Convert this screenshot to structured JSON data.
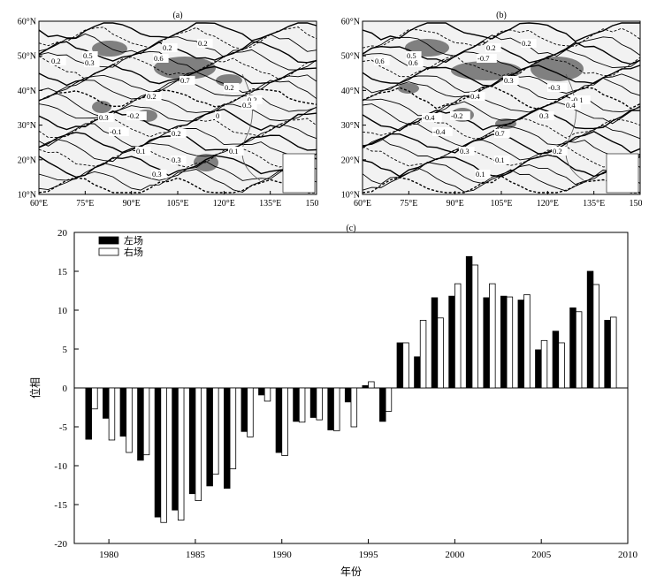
{
  "maps": [
    {
      "id": "a",
      "title": "(a)",
      "lat_labels": [
        "60°N",
        "50°N",
        "40°N",
        "30°N",
        "20°N",
        "10°N"
      ],
      "lon_labels": [
        "60°E",
        "75°E",
        "90°E",
        "105°E",
        "120°E",
        "135°E",
        "150°E"
      ],
      "contour_labels": [
        "0.2",
        "0.5",
        "0.3",
        "0.6",
        "0.2",
        "0.7",
        "0.2",
        "0.2",
        "0.2",
        "0.2",
        "-0.2",
        "0.3",
        "-0.1",
        "0.1",
        "0.3",
        "0.3",
        "0.2",
        "0.5",
        "0.1",
        "0"
      ]
    },
    {
      "id": "b",
      "title": "(b)",
      "lat_labels": [
        "60°N",
        "50°N",
        "40°N",
        "30°N",
        "20°N",
        "10°N"
      ],
      "lon_labels": [
        "60°E",
        "75°E",
        "90°E",
        "105°E",
        "120°E",
        "135°E",
        "150°E"
      ],
      "contour_labels": [
        "0.6",
        "0.5",
        "0.6",
        "-0.7",
        "0.2",
        "0.3",
        "0.4",
        "0.2",
        "-0.3",
        "-0.1",
        "-0.2",
        "-0.4",
        "-0.4",
        "0.3",
        "0.1",
        "0.1",
        "0.7",
        "0.4",
        "0.2",
        "0.3"
      ]
    }
  ],
  "chart_data": {
    "type": "bar",
    "title": "(c)",
    "xlabel": "年份",
    "ylabel": "位相",
    "xlim": [
      1978,
      2010
    ],
    "ylim": [
      -20,
      20
    ],
    "xticks": [
      1980,
      1985,
      1990,
      1995,
      2000,
      2005,
      2010
    ],
    "yticks": [
      20,
      15,
      10,
      5,
      0,
      -5,
      -10,
      -15,
      -20
    ],
    "legend_position": "top-left",
    "x": [
      1979,
      1980,
      1981,
      1982,
      1983,
      1984,
      1985,
      1986,
      1987,
      1988,
      1989,
      1990,
      1991,
      1992,
      1993,
      1994,
      1995,
      1996,
      1997,
      1998,
      1999,
      2000,
      2001,
      2002,
      2003,
      2004,
      2005,
      2006,
      2007,
      2008,
      2009
    ],
    "series": [
      {
        "name": "左场",
        "color": "#000000",
        "values": [
          -6.6,
          -3.9,
          -6.2,
          -9.3,
          -16.6,
          -15.7,
          -13.6,
          -12.6,
          -12.9,
          -5.6,
          -0.9,
          -8.3,
          -4.3,
          -3.8,
          -5.4,
          -1.8,
          0.3,
          -4.3,
          5.8,
          4.0,
          11.6,
          11.8,
          16.9,
          11.6,
          11.8,
          11.3,
          4.9,
          7.3,
          10.3,
          15.0,
          8.7
        ]
      },
      {
        "name": "右场",
        "color": "#ffffff",
        "values": [
          -2.7,
          -6.7,
          -8.3,
          -8.6,
          -17.3,
          -17.0,
          -14.5,
          -11.1,
          -10.4,
          -6.3,
          -1.7,
          -8.7,
          -4.4,
          -4.1,
          -5.5,
          -5.0,
          0.8,
          -3.0,
          5.8,
          8.7,
          9.0,
          13.4,
          15.8,
          13.4,
          11.7,
          12.0,
          6.1,
          5.8,
          9.8,
          13.3,
          9.1
        ]
      }
    ]
  }
}
